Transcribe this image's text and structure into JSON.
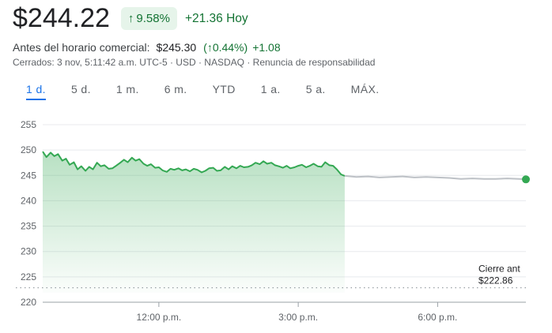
{
  "header": {
    "price": "$244.22",
    "change_pct": "9.58%",
    "change_abs": "+21.36 Hoy"
  },
  "premarket": {
    "label": "Antes del horario comercial:",
    "price": "$245.30",
    "change_pct": "0.44%",
    "change_abs": "+1.08"
  },
  "status": {
    "closed": "Cerrados: 3 nov, 5:11:42 a.m. UTC-5 · USD · NASDAQ · ",
    "disclaimer": "Renuncia de responsabilidad"
  },
  "tabs": [
    {
      "label": "1 d.",
      "active": true
    },
    {
      "label": "5 d.",
      "active": false
    },
    {
      "label": "1 m.",
      "active": false
    },
    {
      "label": "6 m.",
      "active": false
    },
    {
      "label": "YTD",
      "active": false
    },
    {
      "label": "1 a.",
      "active": false
    },
    {
      "label": "5 a.",
      "active": false
    },
    {
      "label": "MÁX.",
      "active": false
    }
  ],
  "colors": {
    "positive": "#137333",
    "line": "#34a853",
    "afterhours": "#bdc1c6",
    "accent": "#1a73e8"
  },
  "icons": {
    "up_arrow": "arrow-up-icon"
  },
  "chart_data": {
    "type": "line",
    "ylim": [
      220,
      255
    ],
    "y_ticks": [
      255,
      250,
      245,
      240,
      235,
      230,
      225,
      220
    ],
    "x_ticks": [
      "12:00 p.m.",
      "3:00 p.m.",
      "6:00 p.m."
    ],
    "x_tick_values": [
      12.0,
      15.0,
      18.0
    ],
    "xlim": [
      9.5,
      19.9
    ],
    "previous_close": {
      "label_line1": "Cierre ant",
      "label_line2": "$222.86",
      "value": 222.86
    },
    "series": [
      {
        "session": "regular",
        "x": [
          9.5,
          9.58,
          9.67,
          9.75,
          9.83,
          9.92,
          10.0,
          10.08,
          10.17,
          10.25,
          10.33,
          10.42,
          10.5,
          10.58,
          10.67,
          10.75,
          10.83,
          10.92,
          11.0,
          11.08,
          11.17,
          11.25,
          11.33,
          11.42,
          11.5,
          11.58,
          11.67,
          11.75,
          11.83,
          11.92,
          12.0,
          12.08,
          12.17,
          12.25,
          12.33,
          12.42,
          12.5,
          12.58,
          12.67,
          12.75,
          12.83,
          12.92,
          13.0,
          13.08,
          13.17,
          13.25,
          13.33,
          13.42,
          13.5,
          13.58,
          13.67,
          13.75,
          13.83,
          13.92,
          14.0,
          14.08,
          14.17,
          14.25,
          14.33,
          14.42,
          14.5,
          14.58,
          14.67,
          14.75,
          14.83,
          14.92,
          15.0,
          15.08,
          15.17,
          15.25,
          15.33,
          15.42,
          15.5,
          15.58,
          15.67,
          15.75,
          15.83,
          15.92,
          16.0
        ],
        "y": [
          249.7,
          248.6,
          249.5,
          248.8,
          249.2,
          247.9,
          248.3,
          247.1,
          247.6,
          246.2,
          246.8,
          245.9,
          246.7,
          246.2,
          247.5,
          246.8,
          247.0,
          246.3,
          246.4,
          246.9,
          247.5,
          248.1,
          247.6,
          248.5,
          247.9,
          248.2,
          247.3,
          246.9,
          247.2,
          246.5,
          246.6,
          246.0,
          245.7,
          246.3,
          246.1,
          246.4,
          246.0,
          246.2,
          245.8,
          246.3,
          246.1,
          245.6,
          245.9,
          246.4,
          246.5,
          245.9,
          246.0,
          246.7,
          246.2,
          246.8,
          246.4,
          246.9,
          246.6,
          246.7,
          247.0,
          247.5,
          247.2,
          247.8,
          247.3,
          247.5,
          247.0,
          246.8,
          246.5,
          246.9,
          246.4,
          246.6,
          246.9,
          247.1,
          246.6,
          246.9,
          247.3,
          246.8,
          246.7,
          247.6,
          247.0,
          246.9,
          246.2,
          245.2,
          244.9
        ]
      },
      {
        "session": "after-hours",
        "x": [
          16.0,
          16.25,
          16.5,
          16.75,
          17.0,
          17.25,
          17.5,
          17.75,
          18.0,
          18.25,
          18.5,
          18.75,
          19.0,
          19.25,
          19.5,
          19.75,
          19.9
        ],
        "y": [
          244.9,
          244.7,
          244.8,
          244.6,
          244.7,
          244.8,
          244.6,
          244.7,
          244.6,
          244.5,
          244.3,
          244.4,
          244.3,
          244.3,
          244.4,
          244.3,
          244.22
        ]
      }
    ]
  }
}
